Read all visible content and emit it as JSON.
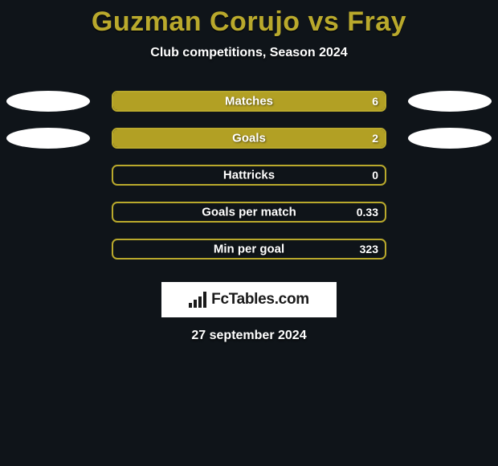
{
  "title": "Guzman Corujo vs Fray",
  "title_color": "#b9a92c",
  "subtitle": "Club competitions, Season 2024",
  "background_color": "#0f1419",
  "ellipse_color": "#ffffff",
  "stats": [
    {
      "label": "Matches",
      "value": "6",
      "fill_pct": 100,
      "fill_color": "#b2a024",
      "border_color": "#b9a92c",
      "show_ellipses": true
    },
    {
      "label": "Goals",
      "value": "2",
      "fill_pct": 100,
      "fill_color": "#b2a024",
      "border_color": "#b9a92c",
      "show_ellipses": true
    },
    {
      "label": "Hattricks",
      "value": "0",
      "fill_pct": 0,
      "fill_color": "#b2a024",
      "border_color": "#b9a92c",
      "show_ellipses": false
    },
    {
      "label": "Goals per match",
      "value": "0.33",
      "fill_pct": 0,
      "fill_color": "#b2a024",
      "border_color": "#b9a92c",
      "show_ellipses": false
    },
    {
      "label": "Min per goal",
      "value": "323",
      "fill_pct": 0,
      "fill_color": "#b2a024",
      "border_color": "#b9a92c",
      "show_ellipses": false
    }
  ],
  "logo_text": "FcTables.com",
  "date": "27 september 2024"
}
